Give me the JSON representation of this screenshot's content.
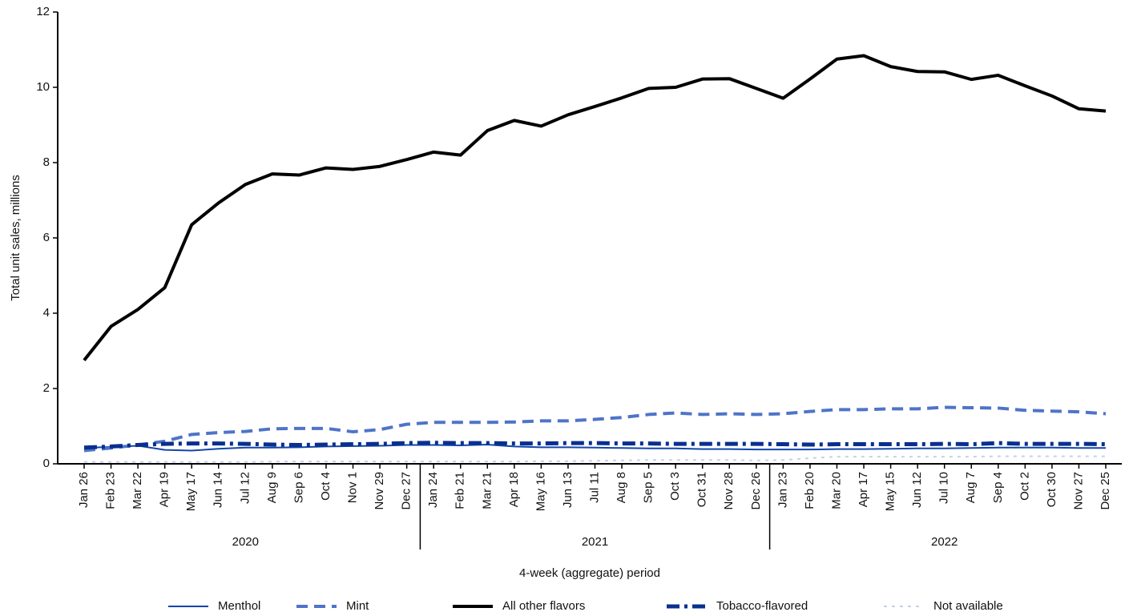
{
  "chart_data": {
    "type": "line",
    "y_label": "Total unit sales, millions",
    "x_label": "4-week (aggregate) period",
    "category_groups": [
      {
        "label": "2020",
        "categories": [
          "Jan 26",
          "Feb 23",
          "Mar 22",
          "Apr 19",
          "May 17",
          "Jun 14",
          "Jul 12",
          "Aug 9",
          "Sep 6",
          "Oct 4",
          "Nov 1",
          "Nov 29",
          "Dec 27"
        ]
      },
      {
        "label": "2021",
        "categories": [
          "Jan 24",
          "Feb 21",
          "Mar 21",
          "Apr 18",
          "May 16",
          "Jun 13",
          "Jul 11",
          "Aug 8",
          "Sep 5",
          "Oct 3",
          "Oct 31",
          "Nov 28",
          "Dec 26"
        ]
      },
      {
        "label": "2022",
        "categories": [
          "Jan 23",
          "Feb 20",
          "Mar 20",
          "Apr 17",
          "May 15",
          "Jun 12",
          "Jul 10",
          "Aug 7",
          "Sep 4",
          "Oct 2",
          "Oct 30",
          "Nov 27",
          "Dec 25"
        ]
      }
    ],
    "ylim": [
      0,
      12
    ],
    "yticks": [
      0,
      2,
      4,
      6,
      8,
      10,
      12
    ],
    "series": [
      {
        "name": "Menthol",
        "color": "#1246a8",
        "dash": "solid",
        "linewidth": 2,
        "values": [
          0.42,
          0.45,
          0.48,
          0.37,
          0.35,
          0.4,
          0.43,
          0.43,
          0.44,
          0.46,
          0.47,
          0.48,
          0.5,
          0.5,
          0.49,
          0.51,
          0.46,
          0.44,
          0.44,
          0.43,
          0.42,
          0.41,
          0.41,
          0.39,
          0.39,
          0.38,
          0.38,
          0.38,
          0.39,
          0.39,
          0.4,
          0.41,
          0.41,
          0.42,
          0.43,
          0.43,
          0.43,
          0.42,
          0.42
        ]
      },
      {
        "name": "Mint",
        "color": "#4f74c8",
        "dash": "dash",
        "linewidth": 4,
        "values": [
          0.35,
          0.42,
          0.5,
          0.6,
          0.78,
          0.83,
          0.86,
          0.93,
          0.94,
          0.94,
          0.85,
          0.91,
          1.05,
          1.1,
          1.1,
          1.1,
          1.11,
          1.14,
          1.14,
          1.18,
          1.23,
          1.31,
          1.35,
          1.31,
          1.33,
          1.31,
          1.33,
          1.39,
          1.44,
          1.44,
          1.46,
          1.46,
          1.5,
          1.49,
          1.48,
          1.42,
          1.4,
          1.38,
          1.33
        ]
      },
      {
        "name": "All other flavors",
        "color": "#000000",
        "dash": "solid",
        "linewidth": 4,
        "values": [
          2.75,
          3.65,
          4.1,
          4.68,
          6.35,
          6.93,
          7.42,
          7.7,
          7.67,
          7.86,
          7.82,
          7.9,
          8.08,
          8.28,
          8.2,
          8.85,
          9.12,
          8.97,
          9.27,
          9.49,
          9.72,
          9.97,
          10.0,
          10.22,
          10.23,
          9.97,
          9.71,
          10.22,
          10.75,
          10.84,
          10.55,
          10.42,
          10.41,
          10.21,
          10.32,
          10.04,
          9.77,
          9.43,
          9.37
        ]
      },
      {
        "name": "Tobacco-flavored",
        "color": "#0a2f8f",
        "dash": "dashdot",
        "linewidth": 5,
        "values": [
          0.43,
          0.46,
          0.5,
          0.53,
          0.54,
          0.54,
          0.53,
          0.51,
          0.5,
          0.51,
          0.52,
          0.53,
          0.55,
          0.56,
          0.55,
          0.55,
          0.54,
          0.54,
          0.55,
          0.55,
          0.54,
          0.54,
          0.53,
          0.53,
          0.53,
          0.53,
          0.52,
          0.51,
          0.52,
          0.52,
          0.52,
          0.52,
          0.53,
          0.52,
          0.55,
          0.53,
          0.53,
          0.53,
          0.52
        ]
      },
      {
        "name": "Not available",
        "color": "#c5d0ec",
        "dash": "dot",
        "linewidth": 2,
        "values": [
          0.05,
          0.05,
          0.05,
          0.05,
          0.05,
          0.05,
          0.05,
          0.06,
          0.06,
          0.06,
          0.06,
          0.06,
          0.06,
          0.06,
          0.06,
          0.06,
          0.06,
          0.07,
          0.07,
          0.08,
          0.09,
          0.1,
          0.1,
          0.1,
          0.1,
          0.09,
          0.1,
          0.15,
          0.19,
          0.19,
          0.19,
          0.19,
          0.19,
          0.19,
          0.2,
          0.2,
          0.2,
          0.2,
          0.2
        ]
      }
    ]
  }
}
